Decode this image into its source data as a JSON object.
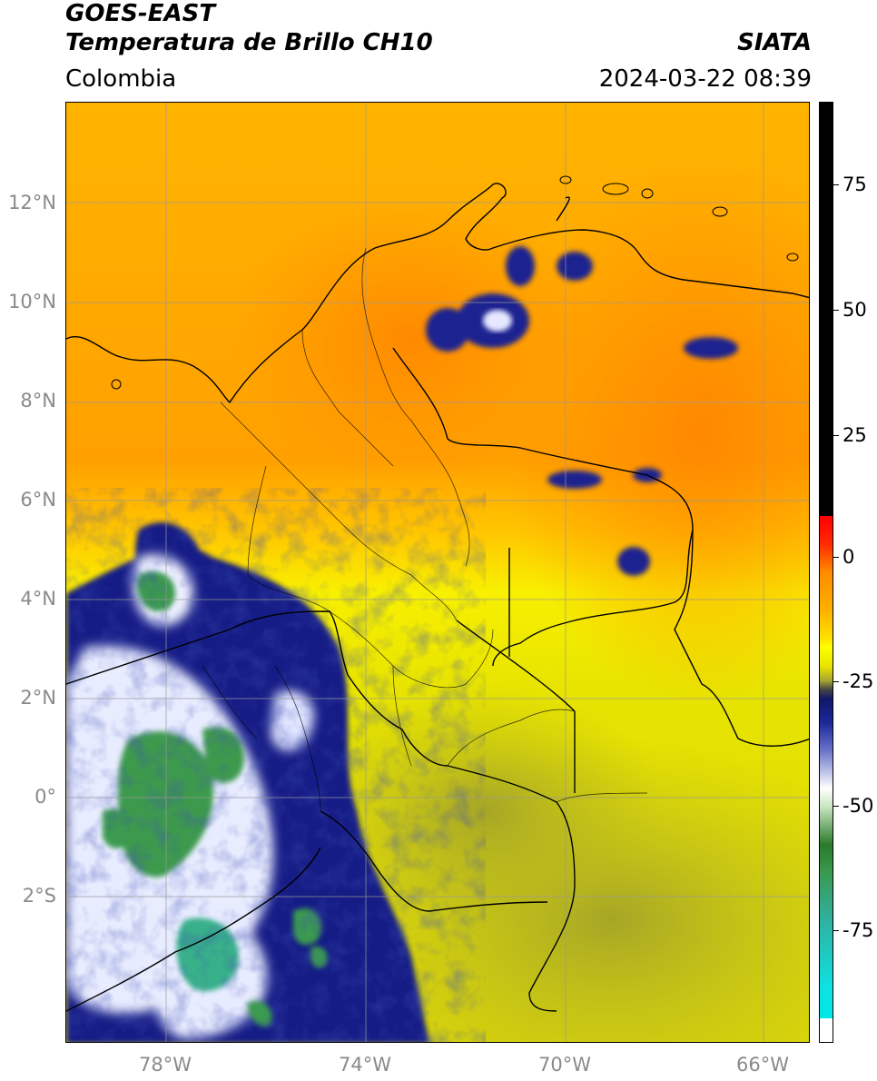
{
  "header": {
    "title_line1": "GOES-EAST",
    "title_line2": "Temperatura de Brillo CH10",
    "agency": "SIATA",
    "region": "Colombia",
    "timestamp": "2024-03-22 08:39"
  },
  "map": {
    "lon_labels": [
      "78°W",
      "74°W",
      "70°W",
      "66°W"
    ],
    "lat_labels": [
      "12°N",
      "10°N",
      "8°N",
      "6°N",
      "4°N",
      "2°N",
      "0°",
      "2°S"
    ],
    "colors": {
      "warm_orange": "#ff9b00",
      "orange_yellow": "#ffc000",
      "yellow": "#f2f200",
      "olive": "#a8a830",
      "navy": "#101a80",
      "white": "#ffffff",
      "green": "#3a9a50",
      "teal": "#30c0a0"
    }
  },
  "colorbar": {
    "tick_labels": [
      "75",
      "50",
      "25",
      "0",
      "-25",
      "-50",
      "-75"
    ],
    "colors": [
      "#000000",
      "#ff0000",
      "#ff9000",
      "#ffd000",
      "#ffff00",
      "#a8a830",
      "#555555",
      "#101a80",
      "#ffffff",
      "#2a8a3a",
      "#30c0a0",
      "#00e0e0",
      "#ffffff"
    ]
  }
}
